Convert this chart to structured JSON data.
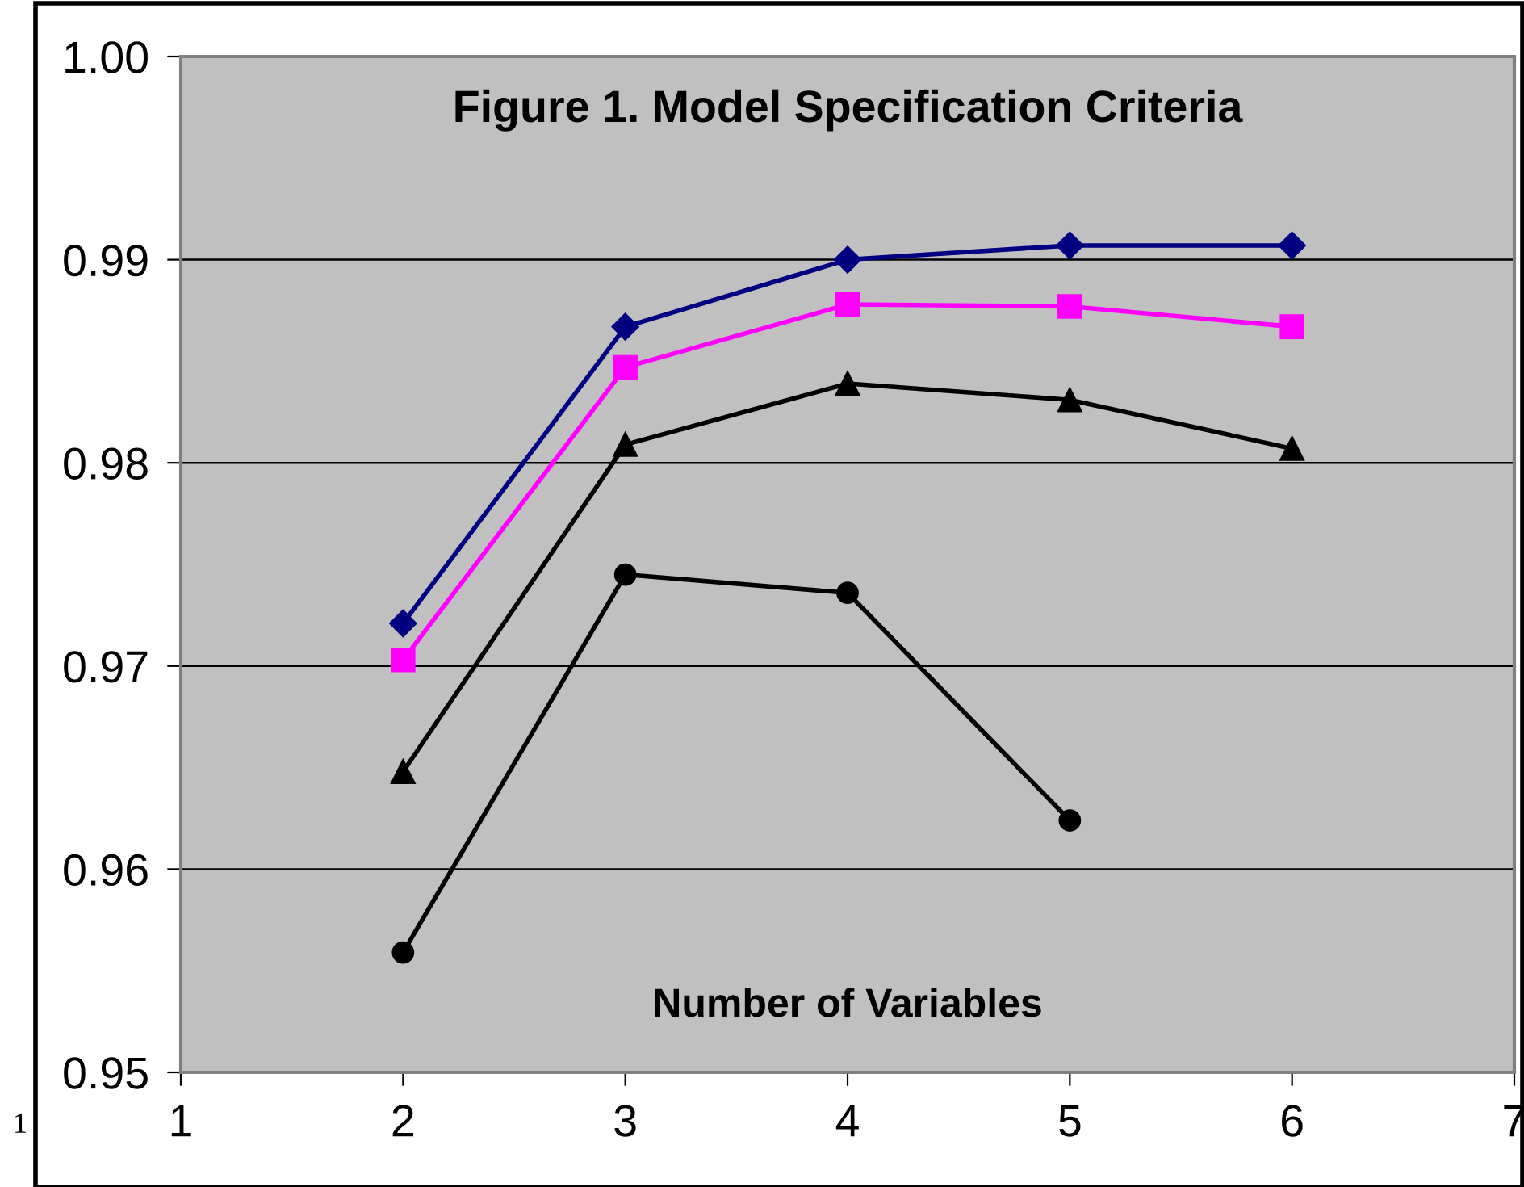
{
  "chart_data": {
    "type": "line",
    "title": "Figure 1. Model Specification Criteria",
    "xlabel": "Number of Variables",
    "x": [
      2,
      3,
      4,
      5,
      6
    ],
    "series": [
      {
        "color": "#000080",
        "marker": "diamond",
        "values": [
          0.9721,
          0.9867,
          0.99,
          0.9907,
          0.9907
        ]
      },
      {
        "color": "#ff00ff",
        "marker": "square",
        "values": [
          0.9703,
          0.9847,
          0.9878,
          0.9877,
          0.9867
        ]
      },
      {
        "color": "#000000",
        "marker": "triangle",
        "values": [
          0.9648,
          0.9809,
          0.9839,
          0.9831,
          0.9807
        ]
      },
      {
        "color": "#000000",
        "marker": "circle",
        "values": [
          0.9559,
          0.9745,
          0.9736,
          0.9624,
          null
        ]
      }
    ],
    "xlim": [
      1,
      7
    ],
    "xticks": [
      1,
      2,
      3,
      4,
      5,
      6,
      7
    ],
    "ylim": [
      0.95,
      1.0
    ],
    "yticks": [
      0.95,
      0.96,
      0.97,
      0.98,
      0.99,
      {
        "value": 1.0,
        "label": "1.00"
      }
    ],
    "grid": "y",
    "legend": false,
    "line_style": "solid",
    "annotations": [
      "1"
    ]
  }
}
